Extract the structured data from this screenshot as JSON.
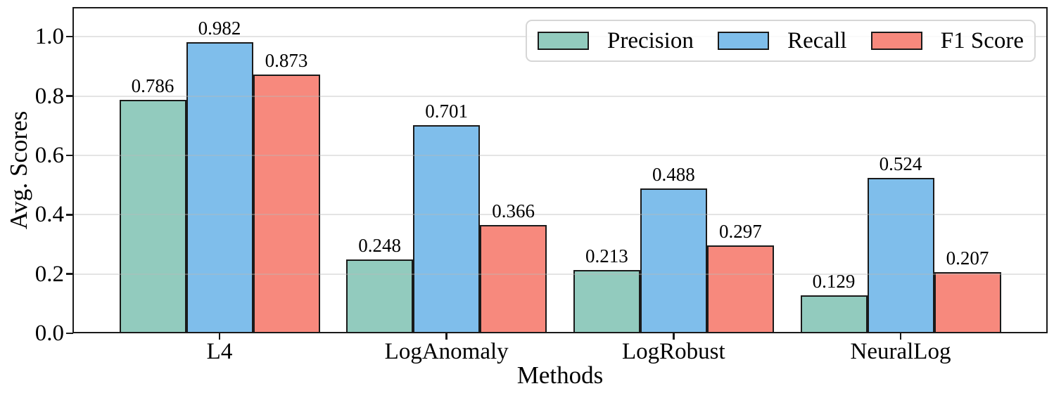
{
  "chart_data": {
    "type": "bar",
    "title": "",
    "xlabel": "Methods",
    "ylabel": "Avg. Scores",
    "categories": [
      "L4",
      "LogAnomaly",
      "LogRobust",
      "NeuralLog"
    ],
    "series": [
      {
        "name": "Precision",
        "color": "#92CBBE",
        "values": [
          0.786,
          0.248,
          0.213,
          0.129
        ]
      },
      {
        "name": "Recall",
        "color": "#7FBEEB",
        "values": [
          0.982,
          0.701,
          0.488,
          0.524
        ]
      },
      {
        "name": "F1 Score",
        "color": "#F7897D",
        "values": [
          0.873,
          0.366,
          0.297,
          0.207
        ]
      }
    ],
    "bar_value_labels": [
      [
        "0.786",
        "0.248",
        "0.213",
        "0.129"
      ],
      [
        "0.982",
        "0.701",
        "0.488",
        "0.524"
      ],
      [
        "0.873",
        "0.366",
        "0.297",
        "0.207"
      ]
    ],
    "ylim": [
      0,
      1.1
    ],
    "yticks": [
      0.0,
      0.2,
      0.4,
      0.6,
      0.8,
      1.0
    ],
    "ytick_labels": [
      "0.0",
      "0.2",
      "0.4",
      "0.6",
      "0.8",
      "1.0"
    ],
    "grid": true,
    "grid_over_bars": true,
    "legend_position": "upper right",
    "bar_edge_color": "#1a1a1a",
    "background_color": "#ffffff"
  }
}
